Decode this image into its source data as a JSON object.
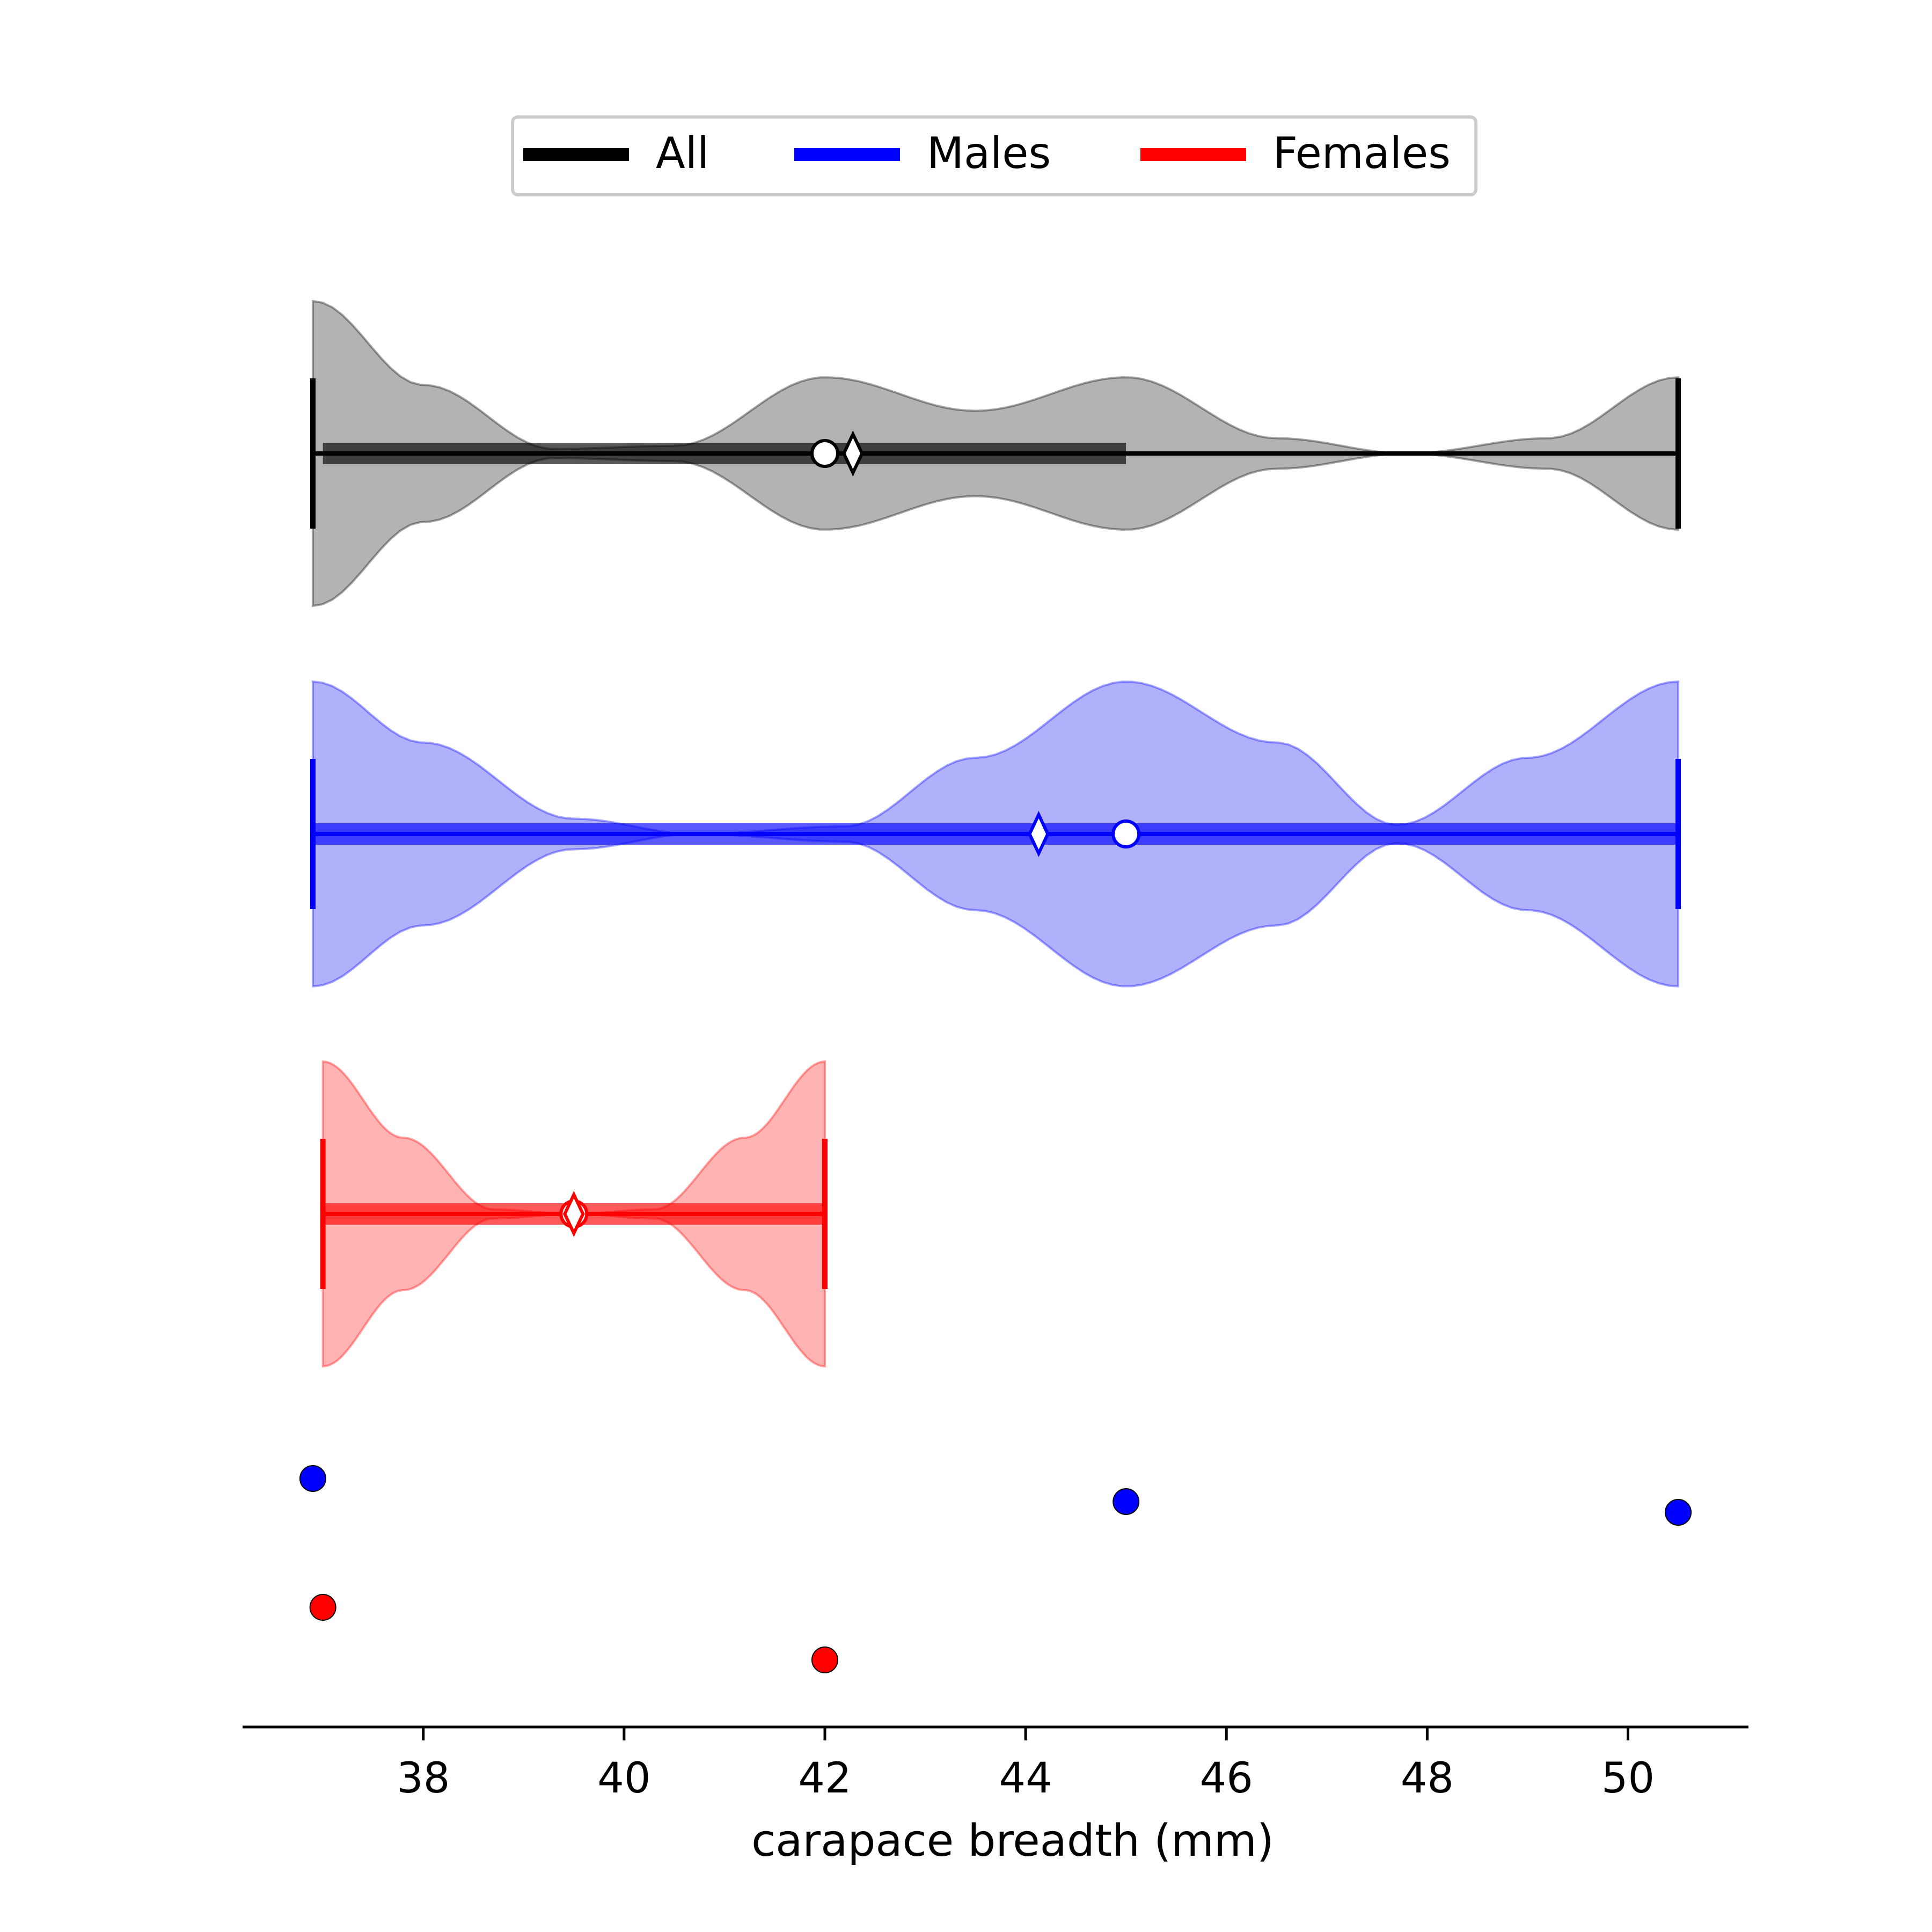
{
  "chart_data": {
    "type": "violin",
    "xlabel": "carapace breadth (mm)",
    "xlim": [
      36.2,
      51.2
    ],
    "xticks": [
      38,
      40,
      42,
      44,
      46,
      48,
      50
    ],
    "orientation": "horizontal",
    "legend": {
      "placement": "top-center",
      "entries": [
        {
          "label": "All",
          "color": "#000000"
        },
        {
          "label": "Males",
          "color": "#0000ff"
        },
        {
          "label": "Females",
          "color": "#ff0000"
        }
      ]
    },
    "series": [
      {
        "name": "All",
        "color": "#000000",
        "fill": "#b3b3b3",
        "min": 36.9,
        "max": 50.5,
        "q1": 37.0,
        "q3": 45.0,
        "median": 42.0,
        "mean": 42.28,
        "density": [
          [
            36.9,
            1.0
          ],
          [
            38.0,
            0.45
          ],
          [
            39.3,
            0.03
          ],
          [
            40.5,
            0.05
          ],
          [
            42.0,
            0.5
          ],
          [
            43.5,
            0.28
          ],
          [
            45.0,
            0.5
          ],
          [
            46.5,
            0.1
          ],
          [
            47.8,
            0.0
          ],
          [
            49.2,
            0.1
          ],
          [
            50.5,
            0.5
          ]
        ]
      },
      {
        "name": "Males",
        "color": "#0000ff",
        "fill": "#b0b0fb",
        "min": 36.9,
        "max": 50.5,
        "q1": 36.9,
        "q3": 50.5,
        "median": 45.0,
        "mean": 44.13,
        "density": [
          [
            36.9,
            1.0
          ],
          [
            38.0,
            0.6
          ],
          [
            39.5,
            0.1
          ],
          [
            40.7,
            0.0
          ],
          [
            42.2,
            0.05
          ],
          [
            43.5,
            0.5
          ],
          [
            45.0,
            1.0
          ],
          [
            46.5,
            0.6
          ],
          [
            47.7,
            0.06
          ],
          [
            49.0,
            0.5
          ],
          [
            50.5,
            1.0
          ]
        ]
      },
      {
        "name": "Females",
        "color": "#ff0000",
        "fill": "#ffb3b3",
        "min": 37.0,
        "max": 42.0,
        "q1": 37.0,
        "q3": 42.0,
        "median": 39.5,
        "mean": 39.5,
        "density": [
          [
            37.0,
            1.0
          ],
          [
            37.8,
            0.5
          ],
          [
            38.7,
            0.03
          ],
          [
            39.5,
            0.0
          ],
          [
            40.3,
            0.03
          ],
          [
            41.2,
            0.5
          ],
          [
            42.0,
            1.0
          ]
        ]
      }
    ],
    "points": [
      {
        "group": "Males",
        "color": "#0000ff",
        "x": [
          36.9,
          45.0,
          50.5
        ]
      },
      {
        "group": "Females",
        "color": "#ff0000",
        "x": [
          37.0,
          42.0
        ]
      }
    ]
  }
}
